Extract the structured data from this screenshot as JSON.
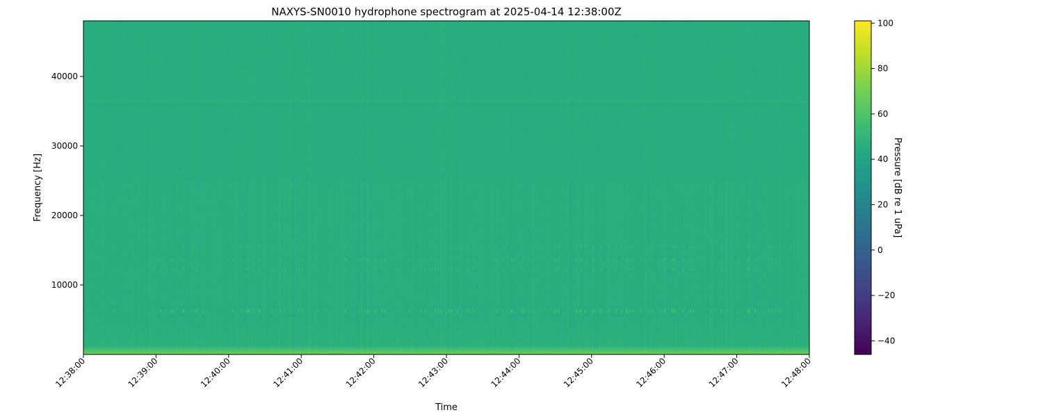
{
  "chart_data": {
    "type": "heatmap",
    "title": "NAXYS-SN0010 hydrophone spectrogram at 2025-04-14 12:38:00Z",
    "xlabel": "Time",
    "ylabel": "Frequency [Hz]",
    "x_tick_labels": [
      "12:38:00",
      "12:39:00",
      "12:40:00",
      "12:41:00",
      "12:42:00",
      "12:43:00",
      "12:44:00",
      "12:45:00",
      "12:46:00",
      "12:47:00",
      "12:48:00"
    ],
    "xlim": [
      "12:38:00",
      "12:48:00"
    ],
    "y_ticks": [
      10000,
      20000,
      30000,
      40000
    ],
    "y_tick_labels": [
      "10000",
      "20000",
      "30000",
      "40000"
    ],
    "ylim": [
      0,
      48000
    ],
    "colorbar": {
      "label": "Pressure [dB re 1 uPa]",
      "colormap": "viridis",
      "range": [
        -46,
        101
      ],
      "ticks": [
        -40,
        -20,
        0,
        20,
        40,
        60,
        80,
        100
      ],
      "tick_labels": [
        "−40",
        "−20",
        "0",
        "20",
        "40",
        "60",
        "80",
        "100"
      ]
    },
    "background_level_db": 45,
    "features": [
      {
        "frequency_hz": 6300,
        "level_db": 65,
        "kind": "intermittent tonal band"
      },
      {
        "frequency_hz": 12300,
        "level_db": 55,
        "kind": "intermittent tonal band"
      },
      {
        "frequency_hz": 13700,
        "level_db": 55,
        "kind": "intermittent tonal band"
      },
      {
        "frequency_hz": 15500,
        "level_db": 55,
        "kind": "intermittent tonal band"
      },
      {
        "frequency_hz": 36500,
        "level_db": 50,
        "kind": "faint continuous band"
      },
      {
        "frequency_hz": 500,
        "level_db": 70,
        "kind": "low-frequency energy"
      }
    ],
    "grid": false,
    "legend": "none"
  }
}
